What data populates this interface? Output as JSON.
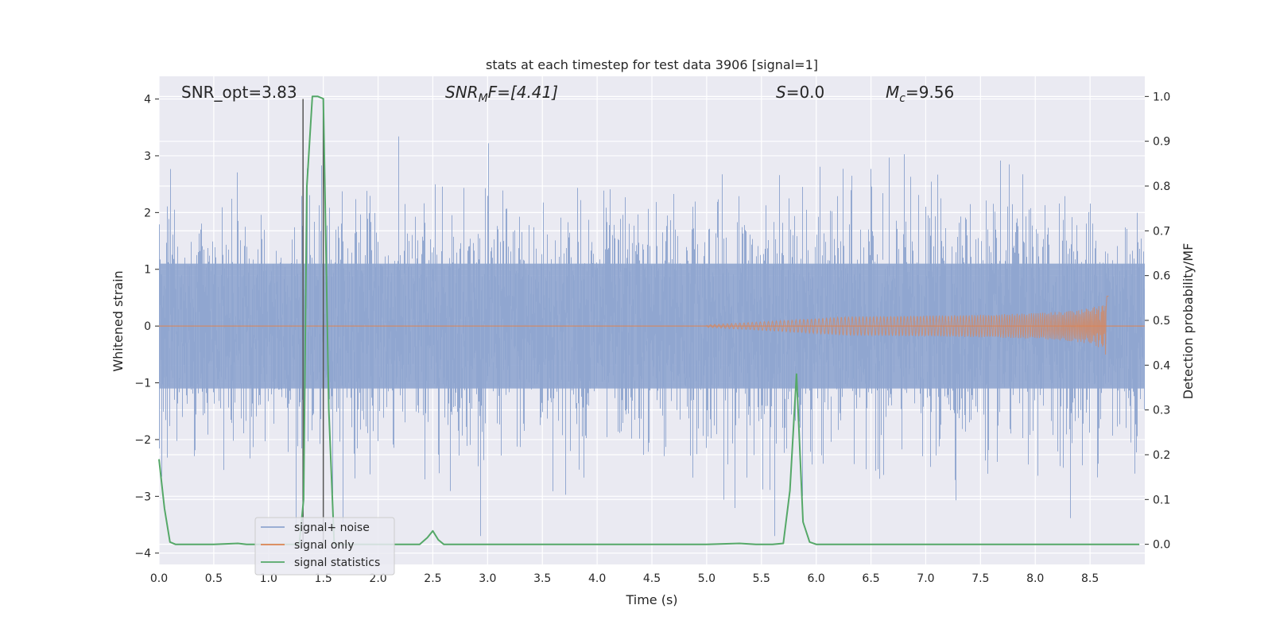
{
  "chart_data": {
    "type": "line",
    "title": "stats at each timestep for test data 3906 [signal=1]",
    "xlabel": "Time (s)",
    "ylabel": "Whitened strain",
    "y2label": "Detection probability/MF",
    "xlim": [
      0.0,
      9.0
    ],
    "ylim": [
      -4.2,
      4.4
    ],
    "y2lim": [
      -0.045,
      1.045
    ],
    "x_ticks": [
      "0.0",
      "0.5",
      "1.0",
      "1.5",
      "2.0",
      "2.5",
      "3.0",
      "3.5",
      "4.0",
      "4.5",
      "5.0",
      "5.5",
      "6.0",
      "6.5",
      "7.0",
      "7.5",
      "8.0",
      "8.5"
    ],
    "y_ticks": [
      "4",
      "3",
      "2",
      "1",
      "0",
      "−1",
      "−2",
      "−3",
      "−4"
    ],
    "y2_ticks": [
      "1.0",
      "0.9",
      "0.8",
      "0.7",
      "0.6",
      "0.5",
      "0.4",
      "0.3",
      "0.2",
      "0.1",
      "0.0"
    ],
    "grid": true,
    "legend_position": "lower-left",
    "annotations": {
      "snr_opt": "SNR_opt=3.83",
      "snr_mf_base": "SNR",
      "snr_mf_sub": "M",
      "snr_mf_rest": "F=[4.41]",
      "s_var": "S",
      "s_rest": "=0.0",
      "mc_base": "M",
      "mc_sub": "c",
      "mc_rest": "=9.56"
    },
    "vlines_x": [
      1.315,
      1.5
    ],
    "series": [
      {
        "name": "signal+ noise",
        "color": "#8fa5cf",
        "description_level": "whitened noise, std approx 1",
        "noise_std": 1.0,
        "x_range": [
          0.0,
          9.0
        ]
      },
      {
        "name": "signal only",
        "color": "#dd8452",
        "chirp": {
          "x_start": 5.0,
          "x_end": 8.67,
          "peak_amplitude": 0.55
        }
      },
      {
        "name": "signal statistics",
        "color": "#55a868",
        "axis": "right",
        "x": [
          0.0,
          0.05,
          0.1,
          0.15,
          0.5,
          0.72,
          0.8,
          1.2,
          1.28,
          1.32,
          1.35,
          1.4,
          1.45,
          1.5,
          1.55,
          1.6,
          2.0,
          2.38,
          2.45,
          2.5,
          2.55,
          2.6,
          3.0,
          4.0,
          5.0,
          5.3,
          5.45,
          5.6,
          5.7,
          5.76,
          5.82,
          5.88,
          5.94,
          6.0,
          7.0,
          8.0,
          8.95
        ],
        "y": [
          0.19,
          0.08,
          0.005,
          0.0,
          0.0,
          0.002,
          0.0,
          0.0,
          0.0,
          0.1,
          0.8,
          1.0,
          1.0,
          0.995,
          0.3,
          0.0,
          0.0,
          0.0,
          0.015,
          0.03,
          0.01,
          0.0,
          0.0,
          0.0,
          0.0,
          0.002,
          0.0,
          0.0,
          0.002,
          0.12,
          0.38,
          0.05,
          0.005,
          0.0,
          0.0,
          0.0,
          0.0
        ]
      }
    ]
  }
}
